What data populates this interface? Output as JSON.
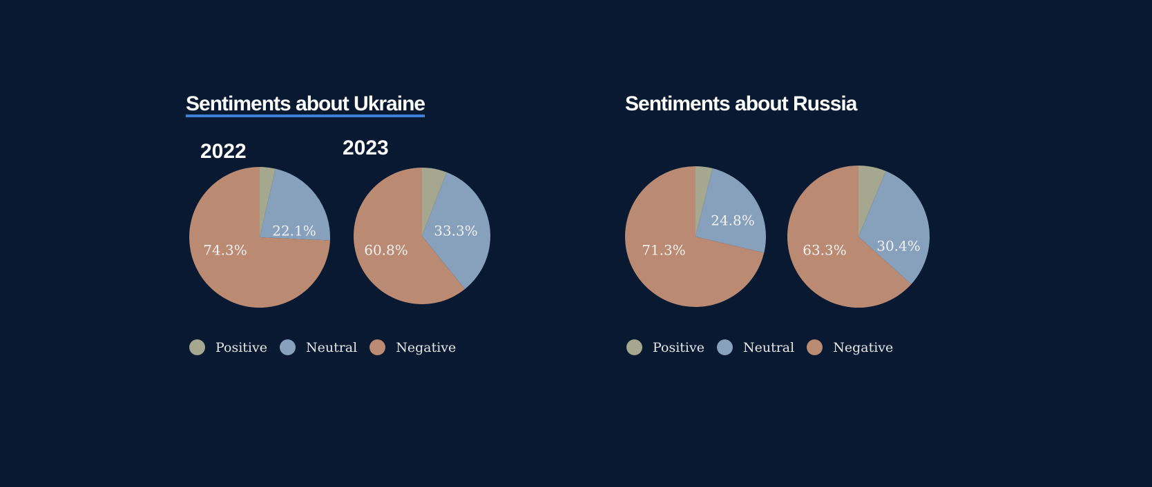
{
  "colors": {
    "background": "#081931",
    "positive": "#a5a78f",
    "neutral": "#87a0bb",
    "negative": "#bb8a72",
    "title_underline": "#3f7fd8"
  },
  "legend": [
    "Positive",
    "Neutral",
    "Negative"
  ],
  "chart_data": [
    {
      "type": "pie",
      "title": "Sentiments about Ukraine",
      "subtitle": "2022",
      "categories": [
        "Positive",
        "Neutral",
        "Negative"
      ],
      "values": [
        3.6,
        22.1,
        74.3
      ],
      "labels": [
        "",
        "22.1%",
        "74.3%"
      ],
      "legend_position": "bottom"
    },
    {
      "type": "pie",
      "title": "Sentiments about Ukraine",
      "subtitle": "2023",
      "categories": [
        "Positive",
        "Neutral",
        "Negative"
      ],
      "values": [
        5.9,
        33.3,
        60.8
      ],
      "labels": [
        "",
        "33.3%",
        "60.8%"
      ],
      "legend_position": "bottom"
    },
    {
      "type": "pie",
      "title": "Sentiments about Russia",
      "subtitle": "",
      "categories": [
        "Positive",
        "Neutral",
        "Negative"
      ],
      "values": [
        3.9,
        24.8,
        71.3
      ],
      "labels": [
        "",
        "24.8%",
        "71.3%"
      ],
      "legend_position": "bottom"
    },
    {
      "type": "pie",
      "title": "Sentiments about Russia",
      "subtitle": "",
      "categories": [
        "Positive",
        "Neutral",
        "Negative"
      ],
      "values": [
        6.3,
        30.4,
        63.3
      ],
      "labels": [
        "",
        "30.4%",
        "63.3%"
      ],
      "legend_position": "bottom"
    }
  ],
  "panels": {
    "ukraine": {
      "title": "Sentiments about Ukraine",
      "year_2022": "2022",
      "year_2023": "2023"
    },
    "russia": {
      "title": "Sentiments about Russia"
    }
  }
}
